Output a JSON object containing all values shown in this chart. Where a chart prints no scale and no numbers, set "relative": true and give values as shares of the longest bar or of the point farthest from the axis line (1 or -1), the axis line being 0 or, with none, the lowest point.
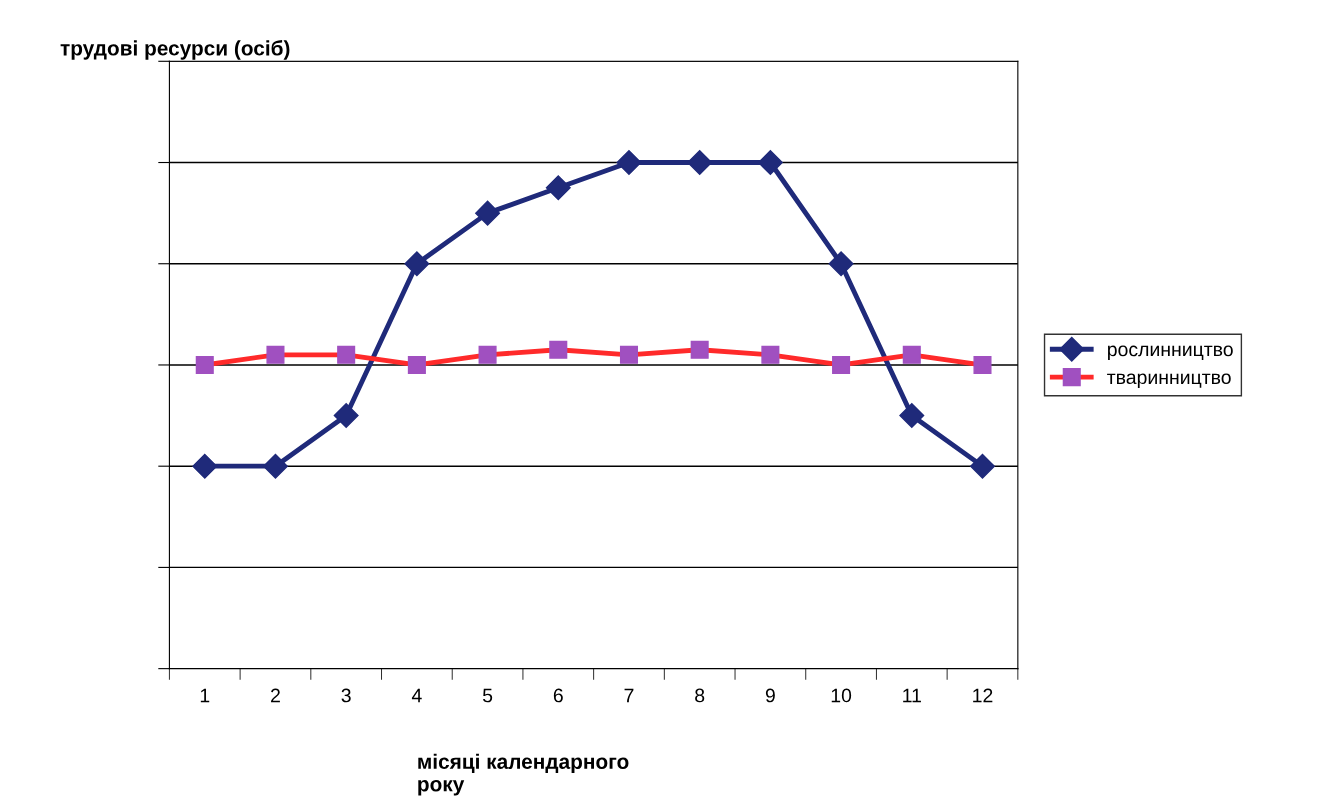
{
  "chart_data": {
    "type": "line",
    "relative": true,
    "ylabel": "трудові ресурси (осіб)",
    "xlabel": "місяці календарного\nроку",
    "categories": [
      "1",
      "2",
      "3",
      "4",
      "5",
      "6",
      "7",
      "8",
      "9",
      "10",
      "11",
      "12"
    ],
    "series": [
      {
        "name": "рослинництво",
        "color": "#1f2a7a",
        "marker": "diamond",
        "values": [
          0.4,
          0.4,
          0.5,
          0.8,
          0.9,
          0.95,
          1.0,
          1.0,
          1.0,
          0.8,
          0.5,
          0.4
        ]
      },
      {
        "name": "тваринництво",
        "color": "#ff2a2a",
        "marker": "square",
        "values": [
          0.6,
          0.62,
          0.62,
          0.6,
          0.62,
          0.63,
          0.62,
          0.63,
          0.62,
          0.6,
          0.62,
          0.6
        ]
      }
    ],
    "grid": "y",
    "legend": "right",
    "line_style": "solid"
  }
}
